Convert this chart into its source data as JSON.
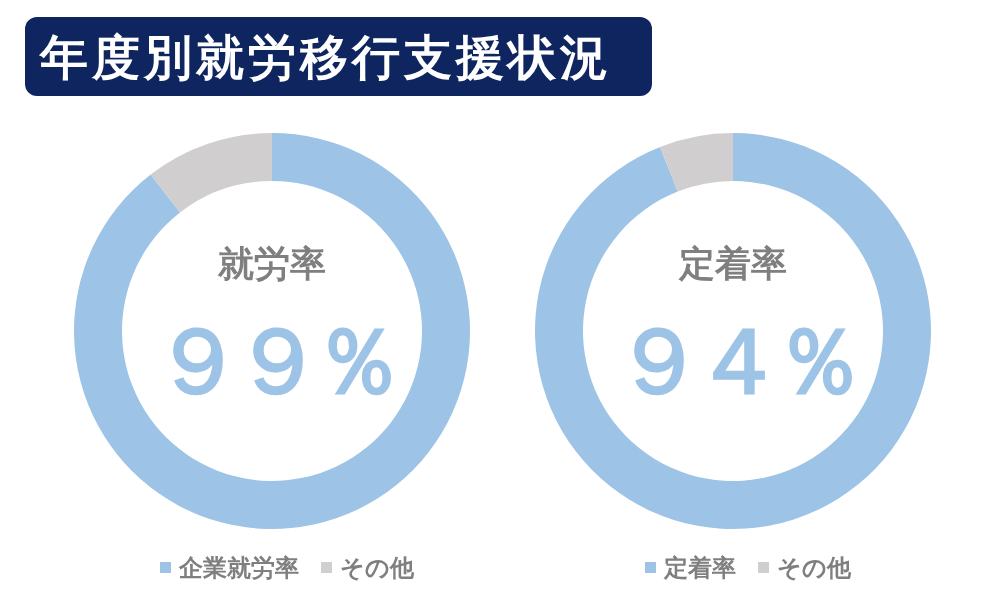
{
  "chart_data": [
    {
      "type": "donut",
      "title": "年度別就労移行支援状況",
      "categories": [
        "企業就労率",
        "その他"
      ],
      "values": [
        89.5,
        10.5
      ],
      "colors": [
        "#9dc3e6",
        "#d0cece"
      ],
      "legend": "bottom",
      "annotations": [
        "就労率",
        "９９％"
      ]
    },
    {
      "type": "donut",
      "categories": [
        "定着率",
        "その他"
      ],
      "values": [
        94,
        6
      ],
      "colors": [
        "#9dc3e6",
        "#d0cece"
      ],
      "legend": "bottom",
      "annotations": [
        "定着率",
        "９４％"
      ]
    }
  ]
}
